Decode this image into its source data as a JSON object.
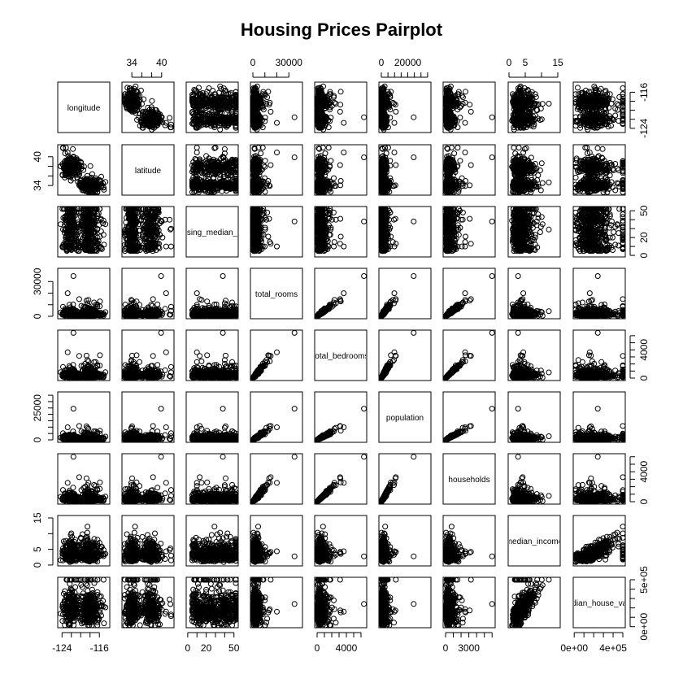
{
  "chart_data": {
    "type": "scatter",
    "subtype": "pairplot",
    "title": "Housing Prices Pairplot",
    "variables": [
      {
        "key": "longitude",
        "label": "longitude",
        "range": [
          -124.4,
          -114.3
        ],
        "ticks": [
          -124,
          -116
        ],
        "tick_labels": [
          "-124",
          "-116"
        ],
        "minor_ticks": [
          -124,
          -122,
          -120,
          -118,
          -116
        ],
        "axis_side": "top-right"
      },
      {
        "key": "latitude",
        "label": "latitude",
        "range": [
          32.5,
          42.0
        ],
        "ticks": [
          34,
          40
        ],
        "tick_labels": [
          "34",
          "40"
        ],
        "minor_ticks": [
          34,
          36,
          38,
          40
        ],
        "axis_side": "top-left"
      },
      {
        "key": "housing_median_age",
        "label": "housing_median_age",
        "range": [
          1,
          52
        ],
        "ticks": [
          0,
          20,
          50
        ],
        "tick_labels": [
          "0",
          "20",
          "50"
        ],
        "minor_ticks": [
          0,
          10,
          20,
          30,
          40,
          50
        ],
        "axis_side": "right-bottom"
      },
      {
        "key": "total_rooms",
        "label": "total_rooms",
        "range": [
          2,
          39320
        ],
        "ticks": [
          0,
          30000
        ],
        "tick_labels": [
          "0",
          "30000"
        ],
        "minor_ticks": [
          0,
          10000,
          20000,
          30000
        ],
        "axis_side": "top-left"
      },
      {
        "key": "total_bedrooms",
        "label": "total_bedrooms",
        "range": [
          1,
          6445
        ],
        "ticks": [
          0,
          4000
        ],
        "tick_labels": [
          "0",
          "4000"
        ],
        "minor_ticks": [
          0,
          1000,
          2000,
          3000,
          4000,
          5000,
          6000
        ],
        "axis_side": "right-bottom"
      },
      {
        "key": "population",
        "label": "population",
        "range": [
          3,
          35682
        ],
        "ticks": [
          0,
          20000
        ],
        "tick_labels": [
          "0",
          "20000"
        ],
        "extra_axis_ticks": [
          0,
          25000
        ],
        "extra_axis_labels": [
          "0",
          "25000"
        ],
        "minor_ticks": [
          0,
          5000,
          10000,
          15000,
          20000,
          25000,
          30000,
          35000
        ],
        "axis_side": "top-left"
      },
      {
        "key": "households",
        "label": "households",
        "range": [
          1,
          6082
        ],
        "ticks": [
          0,
          4000
        ],
        "tick_labels": [
          "0",
          "4000"
        ],
        "bottom_ticks": [
          0,
          3000
        ],
        "bottom_labels": [
          "0",
          "3000"
        ],
        "minor_ticks": [
          0,
          1000,
          2000,
          3000,
          4000,
          5000,
          6000
        ],
        "axis_side": "right-bottom"
      },
      {
        "key": "median_income",
        "label": "median_income",
        "range": [
          0.5,
          15.0
        ],
        "ticks": [
          0,
          5,
          15
        ],
        "tick_labels": [
          "0",
          "5",
          "15"
        ],
        "minor_ticks": [
          0,
          5,
          10,
          15
        ],
        "axis_side": "top-left"
      },
      {
        "key": "median_house_value",
        "label": "median_house_value",
        "range": [
          14999,
          500001
        ],
        "ticks": [
          0,
          500000
        ],
        "tick_labels": [
          "0e+00",
          "5e+05"
        ],
        "bottom_ticks": [
          0,
          400000
        ],
        "bottom_labels": [
          "0e+00",
          "4e+05"
        ],
        "minor_ticks": [
          0,
          100000,
          200000,
          300000,
          400000,
          500000
        ],
        "axis_side": "right-bottom"
      }
    ],
    "relationships": {
      "longitude__latitude": "strong negative correlation, two clusters around (-122,38) and (-118,34)",
      "total_rooms__total_bedrooms": "strong positive linear",
      "total_bedrooms__households": "strong positive linear",
      "total_rooms__households": "strong positive linear",
      "population__households": "positive linear",
      "median_income__median_house_value": "positive correlation, capped at 500001",
      "housing_median_age": "uniform-ish, capped at 52"
    },
    "n_points": 20640,
    "grid": false,
    "legend": "none"
  }
}
